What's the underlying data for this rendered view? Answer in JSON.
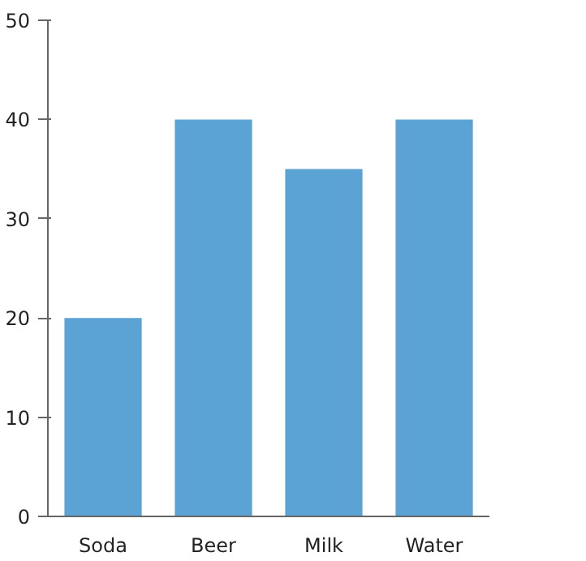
{
  "chart_data": {
    "type": "bar",
    "categories": [
      "Soda",
      "Beer",
      "Milk",
      "Water"
    ],
    "values": [
      20,
      40,
      35,
      40
    ],
    "color": "#5ba3d4",
    "ylim": [
      0,
      50
    ],
    "yticks": [
      0,
      10,
      20,
      30,
      40,
      50
    ],
    "grid": false
  }
}
